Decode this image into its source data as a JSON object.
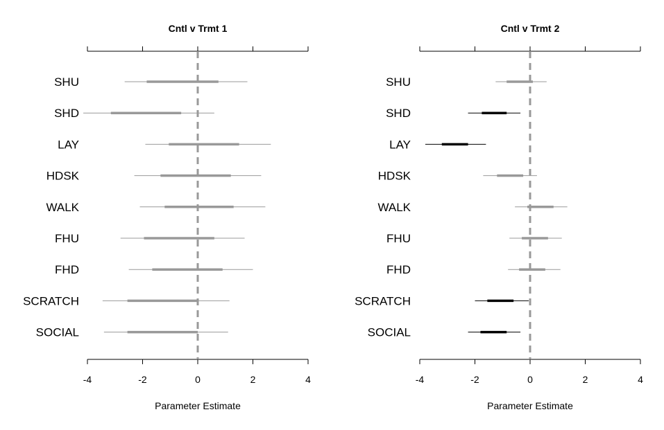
{
  "chart_data": [
    {
      "type": "forest",
      "title": "Cntl v Trmt 1",
      "xlabel": "Parameter Estimate",
      "xlim": [
        -4,
        4
      ],
      "xticks": [
        -4,
        -2,
        0,
        2,
        4
      ],
      "reference_line": 0,
      "categories": [
        "SHU",
        "SHD",
        "LAY",
        "HDSK",
        "WALK",
        "FHU",
        "FHD",
        "SCRATCH",
        "SOCIAL"
      ],
      "rows": [
        {
          "label": "SHU",
          "outer": [
            -2.65,
            1.8
          ],
          "inner": [
            -1.85,
            0.75
          ],
          "significant": false
        },
        {
          "label": "SHD",
          "outer": [
            -4.15,
            0.6
          ],
          "inner": [
            -3.15,
            -0.6
          ],
          "significant": false
        },
        {
          "label": "LAY",
          "outer": [
            -1.9,
            2.65
          ],
          "inner": [
            -1.05,
            1.5
          ],
          "significant": false
        },
        {
          "label": "HDSK",
          "outer": [
            -2.3,
            2.3
          ],
          "inner": [
            -1.35,
            1.2
          ],
          "significant": false
        },
        {
          "label": "WALK",
          "outer": [
            -2.1,
            2.45
          ],
          "inner": [
            -1.2,
            1.3
          ],
          "significant": false
        },
        {
          "label": "FHU",
          "outer": [
            -2.8,
            1.7
          ],
          "inner": [
            -1.95,
            0.6
          ],
          "significant": false
        },
        {
          "label": "FHD",
          "outer": [
            -2.5,
            2.0
          ],
          "inner": [
            -1.65,
            0.9
          ],
          "significant": false
        },
        {
          "label": "SCRATCH",
          "outer": [
            -3.45,
            1.15
          ],
          "inner": [
            -2.55,
            0.0
          ],
          "significant": false
        },
        {
          "label": "SOCIAL",
          "outer": [
            -3.4,
            1.1
          ],
          "inner": [
            -2.55,
            0.0
          ],
          "significant": false
        }
      ]
    },
    {
      "type": "forest",
      "title": "Cntl v Trmt 2",
      "xlabel": "Parameter Estimate",
      "xlim": [
        -4,
        4
      ],
      "xticks": [
        -4,
        -2,
        0,
        2,
        4
      ],
      "reference_line": 0,
      "categories": [
        "SHU",
        "SHD",
        "LAY",
        "HDSK",
        "WALK",
        "FHU",
        "FHD",
        "SCRATCH",
        "SOCIAL"
      ],
      "rows": [
        {
          "label": "SHU",
          "outer": [
            -1.25,
            0.6
          ],
          "inner": [
            -0.85,
            0.1
          ],
          "significant": false
        },
        {
          "label": "SHD",
          "outer": [
            -2.25,
            -0.35
          ],
          "inner": [
            -1.75,
            -0.85
          ],
          "significant": true
        },
        {
          "label": "LAY",
          "outer": [
            -3.8,
            -1.6
          ],
          "inner": [
            -3.2,
            -2.25
          ],
          "significant": true
        },
        {
          "label": "HDSK",
          "outer": [
            -1.7,
            0.25
          ],
          "inner": [
            -1.2,
            -0.25
          ],
          "significant": false
        },
        {
          "label": "WALK",
          "outer": [
            -0.55,
            1.35
          ],
          "inner": [
            -0.1,
            0.85
          ],
          "significant": false
        },
        {
          "label": "FHU",
          "outer": [
            -0.75,
            1.15
          ],
          "inner": [
            -0.3,
            0.65
          ],
          "significant": false
        },
        {
          "label": "FHD",
          "outer": [
            -0.8,
            1.1
          ],
          "inner": [
            -0.4,
            0.55
          ],
          "significant": false
        },
        {
          "label": "SCRATCH",
          "outer": [
            -2.0,
            -0.05
          ],
          "inner": [
            -1.55,
            -0.6
          ],
          "significant": true
        },
        {
          "label": "SOCIAL",
          "outer": [
            -2.25,
            -0.35
          ],
          "inner": [
            -1.8,
            -0.85
          ],
          "significant": true
        }
      ]
    }
  ],
  "colors": {
    "nonsignificant": "#999999",
    "significant": "#000000",
    "reference_line": "#999999",
    "axis": "#000000"
  }
}
